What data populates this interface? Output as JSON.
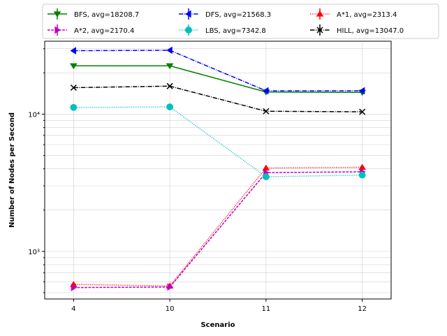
{
  "chart_data": {
    "type": "line",
    "title": "",
    "xlabel": "Scenario",
    "ylabel": "Number of Nodes per Second",
    "yscale": "log",
    "ylim": [
      450,
      34000
    ],
    "grid": true,
    "legend_position": "top",
    "categories": [
      "4",
      "10",
      "11",
      "12"
    ],
    "yticks": [
      {
        "value": 1000,
        "label": "10³"
      },
      {
        "value": 10000,
        "label": "10⁴"
      }
    ],
    "series": [
      {
        "name": "BFS, avg=18208.7",
        "color": "#008000",
        "dash": "solid",
        "marker": "tri-down",
        "values": [
          22500,
          22500,
          14500,
          14400
        ]
      },
      {
        "name": "DFS, avg=21568.3",
        "color": "#0000ff",
        "dash": "dashdot",
        "marker": "tri-left",
        "values": [
          29000,
          29200,
          14800,
          14800
        ]
      },
      {
        "name": "A*1, avg=2313.4",
        "color": "#ff0000",
        "dash": "dotted",
        "marker": "tri-up",
        "values": [
          575,
          560,
          4050,
          4100
        ]
      },
      {
        "name": "A*2, avg=2170.4",
        "color": "#bf00bf",
        "dash": "dashed",
        "marker": "tri-right",
        "values": [
          545,
          550,
          3750,
          3800
        ]
      },
      {
        "name": "LBS, avg=7342.8",
        "color": "#00bfbf",
        "dash": "dotted",
        "marker": "circle",
        "values": [
          11200,
          11300,
          3500,
          3600
        ]
      },
      {
        "name": "HILL, avg=13047.0",
        "color": "#000000",
        "dash": "dashdot",
        "marker": "x",
        "values": [
          15600,
          16000,
          10500,
          10400
        ]
      }
    ]
  }
}
